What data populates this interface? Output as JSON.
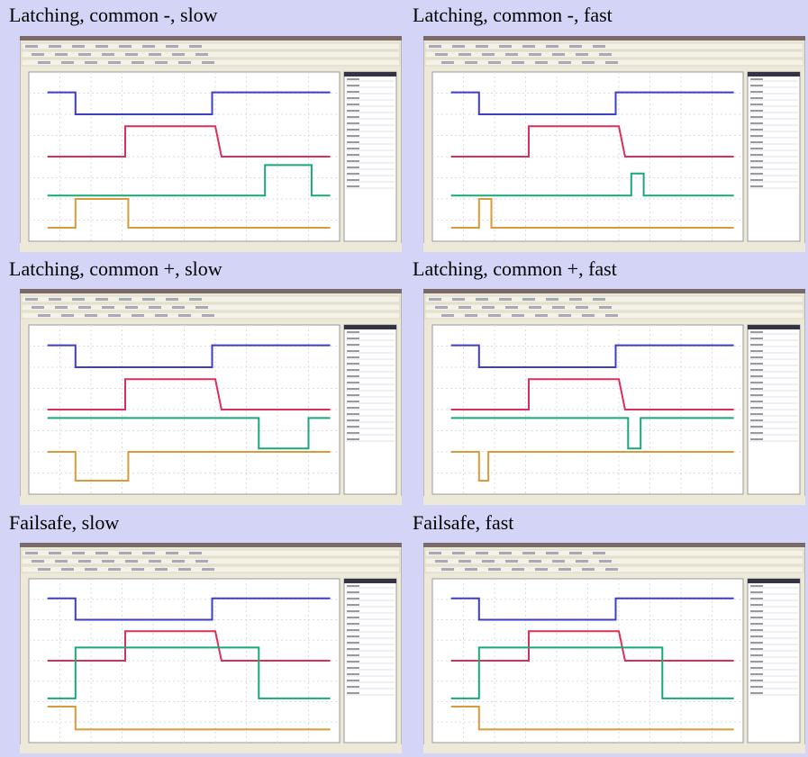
{
  "panels": [
    {
      "title": "Latching, common -, slow"
    },
    {
      "title": "Latching, common -, fast"
    },
    {
      "title": "Latching, common +, slow"
    },
    {
      "title": "Latching, common +, fast"
    },
    {
      "title": "Failsafe, slow"
    },
    {
      "title": "Failsafe, fast"
    }
  ]
}
